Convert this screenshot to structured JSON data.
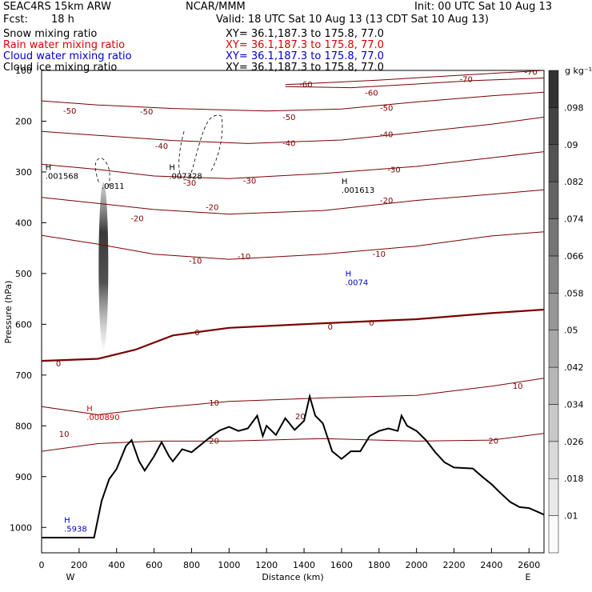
{
  "header": {
    "model": "SEAC4RS 15km ARW",
    "center": "NCAR/MMM",
    "init": "Init: 00 UTC Sat 10 Aug 13",
    "fcst_label": "Fcst:",
    "fcst_value": "18 h",
    "valid": "Valid: 18 UTC Sat 10 Aug 13 (13 CDT Sat 10 Aug 13)",
    "fields": [
      {
        "name": "Snow mixing ratio",
        "xy": "XY=  36.1,187.3 to 175.8, 77.0",
        "color": "#000000"
      },
      {
        "name": "Rain water mixing ratio",
        "xy": "XY=  36.1,187.3 to 175.8, 77.0",
        "color": "#dd0000"
      },
      {
        "name": "Cloud water mixing ratio",
        "xy": "XY=  36.1,187.3 to 175.8, 77.0",
        "color": "#0000cc"
      },
      {
        "name": "Cloud ice mixing ratio",
        "xy": "XY=  36.1,187.3 to 175.8, 77.0",
        "color": "#000000"
      }
    ]
  },
  "chart_data": {
    "type": "heatmap",
    "xlabel": "Distance (km)",
    "ylabel": "Pressure (hPa)",
    "xlim": [
      0,
      2680
    ],
    "ylim": [
      1050,
      100
    ],
    "x_ticks": [
      0,
      200,
      400,
      600,
      800,
      1000,
      1200,
      1400,
      1600,
      1800,
      2000,
      2200,
      2400,
      2600
    ],
    "y_ticks": [
      1000,
      900,
      800,
      700,
      600,
      500,
      400,
      300,
      200,
      100
    ],
    "direction_labels": {
      "left": "W",
      "right": "E"
    },
    "colorbar": {
      "unit": "g kg⁻¹",
      "ticks": [
        0.01,
        0.018,
        0.026,
        0.034,
        0.042,
        0.05,
        0.058,
        0.066,
        0.074,
        0.082,
        0.09,
        0.098
      ],
      "tick_labels": [
        ".01",
        ".018",
        ".026",
        ".034",
        ".042",
        ".05",
        ".058",
        ".066",
        ".074",
        ".082",
        ".09",
        ".098"
      ]
    },
    "temperature_contours": [
      {
        "level": -70,
        "points": [
          [
            1300,
            128
          ],
          [
            1800,
            119
          ],
          [
            2300,
            108
          ],
          [
            2680,
            100
          ]
        ]
      },
      {
        "level": -60,
        "points": [
          [
            1300,
            132
          ],
          [
            1650,
            134
          ],
          [
            1900,
            129
          ],
          [
            2300,
            120
          ],
          [
            2680,
            115
          ]
        ]
      },
      {
        "level": -50,
        "points": [
          [
            0,
            160
          ],
          [
            300,
            168
          ],
          [
            700,
            175
          ],
          [
            1200,
            180
          ],
          [
            1600,
            176
          ],
          [
            2000,
            162
          ],
          [
            2400,
            150
          ],
          [
            2680,
            143
          ]
        ]
      },
      {
        "level": -40,
        "points": [
          [
            0,
            220
          ],
          [
            300,
            228
          ],
          [
            700,
            238
          ],
          [
            1100,
            244
          ],
          [
            1600,
            237
          ],
          [
            2000,
            222
          ],
          [
            2400,
            206
          ],
          [
            2680,
            192
          ]
        ]
      },
      {
        "level": -30,
        "points": [
          [
            0,
            285
          ],
          [
            300,
            295
          ],
          [
            600,
            308
          ],
          [
            1000,
            313
          ],
          [
            1500,
            303
          ],
          [
            2000,
            289
          ],
          [
            2400,
            272
          ],
          [
            2680,
            260
          ]
        ]
      },
      {
        "level": -20,
        "points": [
          [
            0,
            350
          ],
          [
            300,
            362
          ],
          [
            600,
            374
          ],
          [
            1000,
            383
          ],
          [
            1500,
            376
          ],
          [
            2000,
            356
          ],
          [
            2400,
            344
          ],
          [
            2680,
            335
          ]
        ]
      },
      {
        "level": -10,
        "points": [
          [
            0,
            425
          ],
          [
            300,
            442
          ],
          [
            600,
            462
          ],
          [
            1000,
            472
          ],
          [
            1500,
            462
          ],
          [
            2000,
            446
          ],
          [
            2400,
            426
          ],
          [
            2680,
            418
          ]
        ]
      },
      {
        "level": 0,
        "bold": true,
        "points": [
          [
            0,
            672
          ],
          [
            300,
            668
          ],
          [
            500,
            650
          ],
          [
            700,
            622
          ],
          [
            1000,
            607
          ],
          [
            1500,
            598
          ],
          [
            2000,
            590
          ],
          [
            2400,
            578
          ],
          [
            2680,
            571
          ]
        ]
      },
      {
        "level": 10,
        "points": [
          [
            0,
            762
          ],
          [
            300,
            778
          ],
          [
            600,
            765
          ],
          [
            1000,
            752
          ],
          [
            1500,
            745
          ],
          [
            2000,
            740
          ],
          [
            2400,
            722
          ],
          [
            2680,
            706
          ]
        ]
      },
      {
        "level": 20,
        "points": [
          [
            0,
            850
          ],
          [
            300,
            835
          ],
          [
            600,
            830
          ],
          [
            1000,
            830
          ],
          [
            1500,
            825
          ],
          [
            2000,
            830
          ],
          [
            2400,
            828
          ],
          [
            2680,
            815
          ]
        ]
      }
    ],
    "contour_labels": [
      {
        "text": "-70",
        "x": 2265,
        "y": 118
      },
      {
        "text": "-70",
        "x": 2610,
        "y": 104
      },
      {
        "text": "-60",
        "x": 1410,
        "y": 128
      },
      {
        "text": "-60",
        "x": 1760,
        "y": 145
      },
      {
        "text": "-50",
        "x": 150,
        "y": 180
      },
      {
        "text": "-50",
        "x": 560,
        "y": 182
      },
      {
        "text": "-50",
        "x": 1320,
        "y": 193
      },
      {
        "text": "-50",
        "x": 1840,
        "y": 175
      },
      {
        "text": "-40",
        "x": 640,
        "y": 250
      },
      {
        "text": "-40",
        "x": 1320,
        "y": 244
      },
      {
        "text": "-40",
        "x": 1840,
        "y": 227
      },
      {
        "text": "-30",
        "x": 790,
        "y": 322
      },
      {
        "text": "-30",
        "x": 1110,
        "y": 318
      },
      {
        "text": "-30",
        "x": 1880,
        "y": 296
      },
      {
        "text": "-20",
        "x": 510,
        "y": 392
      },
      {
        "text": "-20",
        "x": 910,
        "y": 370
      },
      {
        "text": "-20",
        "x": 1840,
        "y": 357
      },
      {
        "text": "-10",
        "x": 820,
        "y": 476
      },
      {
        "text": "-10",
        "x": 1080,
        "y": 467
      },
      {
        "text": "-10",
        "x": 1800,
        "y": 462
      },
      {
        "text": "0",
        "x": 90,
        "y": 678
      },
      {
        "text": "0",
        "x": 830,
        "y": 617
      },
      {
        "text": "0",
        "x": 1540,
        "y": 606
      },
      {
        "text": "0",
        "x": 1760,
        "y": 598
      },
      {
        "text": "10",
        "x": 120,
        "y": 817
      },
      {
        "text": "10",
        "x": 920,
        "y": 755
      },
      {
        "text": "10",
        "x": 2540,
        "y": 722
      },
      {
        "text": "20",
        "x": 920,
        "y": 830
      },
      {
        "text": "20",
        "x": 1380,
        "y": 782
      },
      {
        "text": "20",
        "x": 2410,
        "y": 830
      }
    ],
    "maxima": [
      {
        "field": "snow",
        "label": "H",
        "value": ".001568",
        "x": 20,
        "y": 310,
        "color": "#000000"
      },
      {
        "field": "snow",
        "label": "",
        "value": ".0811",
        "x": 320,
        "y": 330,
        "color": "#000000"
      },
      {
        "field": "snow",
        "label": "H",
        "value": ".007328",
        "x": 680,
        "y": 310,
        "color": "#000000"
      },
      {
        "field": "snow",
        "label": "H",
        "value": ".001613",
        "x": 1600,
        "y": 338,
        "color": "#000000"
      },
      {
        "field": "cloud_water",
        "label": "H",
        "value": ".0074",
        "x": 1620,
        "y": 520,
        "color": "#0000cc"
      },
      {
        "field": "rain",
        "label": "H",
        "value": ".000890",
        "x": 240,
        "y": 785,
        "color": "#dd0000"
      },
      {
        "field": "cloud_water",
        "label": "H",
        "value": ".5938",
        "x": 120,
        "y": 1005,
        "color": "#0000cc"
      }
    ],
    "snow_plume": {
      "x": 330,
      "p_top": 320,
      "p_bottom": 650,
      "peak_value": 0.0811
    },
    "terrain": [
      [
        0,
        1020
      ],
      [
        280,
        1020
      ],
      [
        320,
        948
      ],
      [
        360,
        905
      ],
      [
        400,
        885
      ],
      [
        450,
        840
      ],
      [
        480,
        828
      ],
      [
        520,
        870
      ],
      [
        550,
        888
      ],
      [
        600,
        860
      ],
      [
        640,
        832
      ],
      [
        680,
        860
      ],
      [
        700,
        870
      ],
      [
        750,
        846
      ],
      [
        800,
        852
      ],
      [
        850,
        837
      ],
      [
        900,
        822
      ],
      [
        950,
        809
      ],
      [
        1000,
        802
      ],
      [
        1050,
        810
      ],
      [
        1100,
        805
      ],
      [
        1150,
        780
      ],
      [
        1180,
        820
      ],
      [
        1200,
        800
      ],
      [
        1250,
        818
      ],
      [
        1300,
        785
      ],
      [
        1350,
        808
      ],
      [
        1400,
        790
      ],
      [
        1430,
        742
      ],
      [
        1460,
        780
      ],
      [
        1500,
        795
      ],
      [
        1550,
        850
      ],
      [
        1600,
        865
      ],
      [
        1650,
        850
      ],
      [
        1700,
        850
      ],
      [
        1750,
        820
      ],
      [
        1800,
        810
      ],
      [
        1850,
        805
      ],
      [
        1900,
        810
      ],
      [
        1920,
        780
      ],
      [
        1950,
        800
      ],
      [
        2000,
        810
      ],
      [
        2050,
        828
      ],
      [
        2100,
        852
      ],
      [
        2150,
        872
      ],
      [
        2200,
        882
      ],
      [
        2300,
        884
      ],
      [
        2350,
        900
      ],
      [
        2400,
        915
      ],
      [
        2450,
        933
      ],
      [
        2500,
        950
      ],
      [
        2550,
        960
      ],
      [
        2600,
        962
      ],
      [
        2650,
        970
      ],
      [
        2680,
        975
      ]
    ]
  }
}
